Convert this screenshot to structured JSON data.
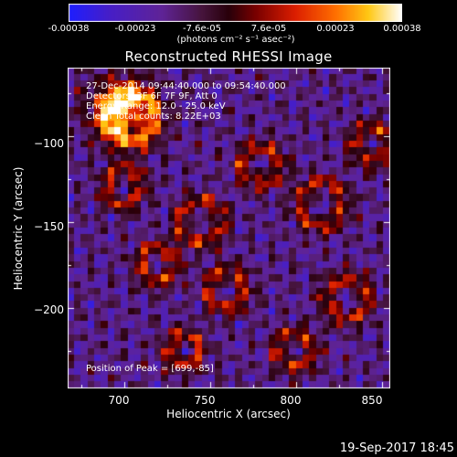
{
  "colorbar": {
    "tick_labels": [
      "-0.00038",
      "-0.00023",
      "-7.6e-05",
      "7.6e-05",
      "0.00023",
      "0.00038"
    ],
    "units_label": "(photons cm⁻² s⁻¹ asec⁻²)",
    "range": [
      -0.00038,
      0.00038
    ]
  },
  "chart_data": {
    "type": "heatmap",
    "title": "Reconstructed RHESSI Image",
    "xlabel": "Heliocentric X (arcsec)",
    "ylabel": "Heliocentric Y (arcsec)",
    "xlim": [
      667,
      855
    ],
    "ylim": [
      -247,
      -60
    ],
    "x_ticks": [
      700,
      750,
      800,
      850
    ],
    "y_ticks": [
      -100,
      -150,
      -200
    ],
    "x_tick_labels": [
      "700",
      "750",
      "800",
      "850"
    ],
    "y_tick_labels": [
      "−100",
      "−150",
      "−200"
    ],
    "annotations": {
      "time": "27-Dec-2014 09:44:40.000 to 09:54:40.000",
      "detectors": "Detectors: 3F 6F 7F 9F, Att 0",
      "energy": "Energy Range: 12.0 - 25.0 keV",
      "clean": "Clean   Total counts: 8.22E+03",
      "peak": "Position of Peak = [699,-85]"
    },
    "peak_position": [
      699,
      -85
    ]
  },
  "footer": {
    "timestamp": "19-Sep-2017 18:45"
  }
}
